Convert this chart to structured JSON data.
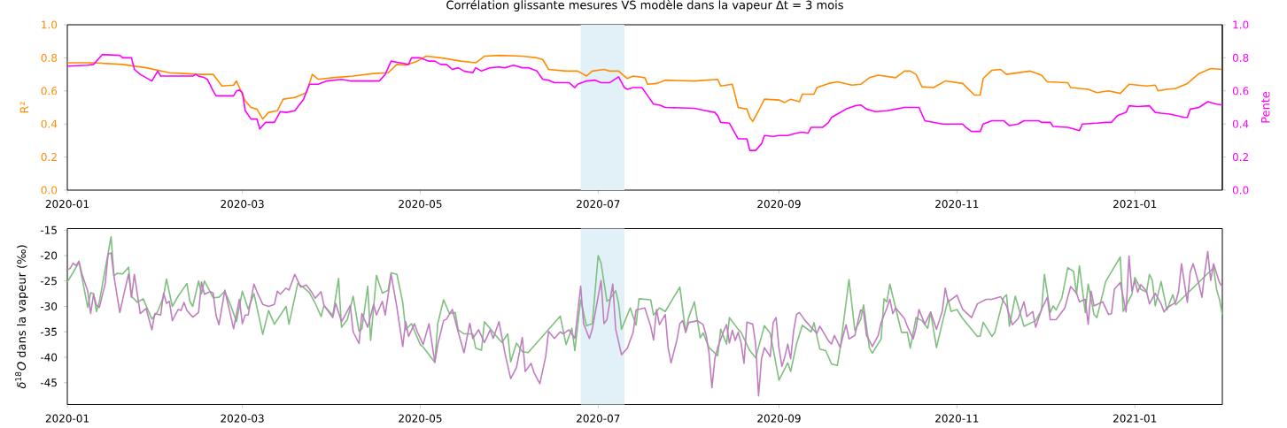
{
  "chart_data": [
    {
      "type": "line",
      "title": "Corrélation glissante mesures VS modèle dans la vapeur Δt = 3 mois",
      "ylabel": "R²",
      "y2label": "Pente",
      "xlim": [
        "2020-01-01",
        "2021-01-31"
      ],
      "xticks": [
        "2020-01",
        "2020-03",
        "2020-05",
        "2020-07",
        "2020-09",
        "2020-11",
        "2021-01"
      ],
      "ylim": [
        0,
        1
      ],
      "yticks": [
        {
          "value": 0,
          "label": "0.0"
        },
        {
          "value": 0.2,
          "label": "0.2"
        },
        {
          "value": 0.4,
          "label": "0.4"
        },
        {
          "value": 0.6,
          "label": "0.6"
        },
        {
          "value": 0.8,
          "label": "0.8"
        },
        {
          "value": 1,
          "label": "1.0"
        }
      ],
      "y2lim": [
        0,
        1
      ],
      "y2ticks": [
        {
          "value": 0,
          "label": "0.0"
        },
        {
          "value": 0.2,
          "label": "0.2"
        },
        {
          "value": 0.4,
          "label": "0.4"
        },
        {
          "value": 0.6,
          "label": "0.6"
        },
        {
          "value": 0.8,
          "label": "0.8"
        },
        {
          "value": 1,
          "label": "1.0"
        }
      ],
      "bands": [
        {
          "axis": "x",
          "from": "2020-06-25",
          "to": "2020-07-10",
          "color": "#e2f1f7"
        }
      ],
      "series": [
        {
          "color": "#ff8c00",
          "x": [
            "2020-01-01",
            "2020-01-10",
            "2020-01-20",
            "2020-01-28",
            "2020-02-05",
            "2020-02-10",
            "2020-02-15",
            "2020-02-20",
            "2020-02-23",
            "2020-02-27",
            "2020-02-28",
            "2020-03-02",
            "2020-03-04",
            "2020-03-06",
            "2020-03-08",
            "2020-03-10",
            "2020-03-13",
            "2020-03-15",
            "2020-03-19",
            "2020-03-23",
            "2020-03-25",
            "2020-03-27",
            "2020-04-01",
            "2020-04-08",
            "2020-04-15",
            "2020-04-20",
            "2020-04-23",
            "2020-04-26",
            "2020-04-30",
            "2020-05-03",
            "2020-05-08",
            "2020-05-15",
            "2020-05-20",
            "2020-05-23",
            "2020-05-28",
            "2020-06-05",
            "2020-06-10",
            "2020-06-12",
            "2020-06-14",
            "2020-06-20",
            "2020-06-24",
            "2020-06-27",
            "2020-06-29",
            "2020-07-03",
            "2020-07-05",
            "2020-07-08",
            "2020-07-11",
            "2020-07-13",
            "2020-07-17",
            "2020-07-18",
            "2020-07-21",
            "2020-07-24",
            "2020-08-03",
            "2020-08-11",
            "2020-08-12",
            "2020-08-16",
            "2020-08-18",
            "2020-08-21",
            "2020-08-22",
            "2020-08-23",
            "2020-08-25",
            "2020-08-27",
            "2020-09-01",
            "2020-09-03",
            "2020-09-05",
            "2020-09-08",
            "2020-09-09",
            "2020-09-13",
            "2020-09-14",
            "2020-09-18",
            "2020-09-21",
            "2020-09-26",
            "2020-09-29",
            "2020-10-02",
            "2020-10-05",
            "2020-10-11",
            "2020-10-14",
            "2020-10-16",
            "2020-10-18",
            "2020-10-20",
            "2020-10-24",
            "2020-10-28",
            "2020-11-03",
            "2020-11-07",
            "2020-11-09",
            "2020-11-10",
            "2020-11-13",
            "2020-11-16",
            "2020-11-18",
            "2020-11-26",
            "2020-11-30",
            "2020-12-02",
            "2020-12-09",
            "2020-12-10",
            "2020-12-16",
            "2020-12-19",
            "2020-12-23",
            "2020-12-27",
            "2020-12-30",
            "2021-01-05",
            "2021-01-08",
            "2021-01-09",
            "2021-01-12",
            "2021-01-15",
            "2021-01-19",
            "2021-01-23",
            "2021-01-27",
            "2021-01-31"
          ],
          "values": [
            0.77,
            0.77,
            0.76,
            0.74,
            0.71,
            0.705,
            0.7,
            0.7,
            0.63,
            0.635,
            0.66,
            0.54,
            0.5,
            0.49,
            0.43,
            0.47,
            0.48,
            0.55,
            0.56,
            0.59,
            0.7,
            0.67,
            0.68,
            0.69,
            0.705,
            0.71,
            0.76,
            0.755,
            0.78,
            0.81,
            0.8,
            0.78,
            0.77,
            0.81,
            0.815,
            0.81,
            0.8,
            0.79,
            0.73,
            0.72,
            0.72,
            0.69,
            0.72,
            0.73,
            0.72,
            0.72,
            0.675,
            0.69,
            0.68,
            0.64,
            0.645,
            0.665,
            0.66,
            0.67,
            0.63,
            0.64,
            0.5,
            0.49,
            0.44,
            0.415,
            0.48,
            0.55,
            0.545,
            0.53,
            0.55,
            0.535,
            0.58,
            0.58,
            0.62,
            0.645,
            0.655,
            0.635,
            0.64,
            0.68,
            0.695,
            0.68,
            0.72,
            0.72,
            0.7,
            0.625,
            0.62,
            0.66,
            0.645,
            0.575,
            0.575,
            0.675,
            0.725,
            0.73,
            0.7,
            0.72,
            0.695,
            0.655,
            0.65,
            0.62,
            0.61,
            0.59,
            0.6,
            0.585,
            0.64,
            0.63,
            0.635,
            0.6,
            0.61,
            0.615,
            0.645,
            0.705,
            0.735,
            0.73
          ]
        },
        {
          "color": "#ff00ff",
          "axis": "y2",
          "x": [
            "2020-01-01",
            "2020-01-08",
            "2020-01-10",
            "2020-01-11",
            "2020-01-13",
            "2020-01-19",
            "2020-01-20",
            "2020-01-23",
            "2020-01-24",
            "2020-01-26",
            "2020-01-28",
            "2020-01-30",
            "2020-02-01",
            "2020-02-02",
            "2020-02-13",
            "2020-02-14",
            "2020-02-15",
            "2020-02-17",
            "2020-02-18",
            "2020-02-20",
            "2020-02-21",
            "2020-02-27",
            "2020-02-28",
            "2020-02-29",
            "2020-03-01",
            "2020-03-02",
            "2020-03-04",
            "2020-03-06",
            "2020-03-07",
            "2020-03-09",
            "2020-03-12",
            "2020-03-14",
            "2020-03-16",
            "2020-03-19",
            "2020-03-22",
            "2020-03-24",
            "2020-03-27",
            "2020-03-30",
            "2020-04-04",
            "2020-04-07",
            "2020-04-13",
            "2020-04-17",
            "2020-04-19",
            "2020-04-21",
            "2020-04-24",
            "2020-04-27",
            "2020-04-28",
            "2020-05-01",
            "2020-05-04",
            "2020-05-06",
            "2020-05-08",
            "2020-05-10",
            "2020-05-12",
            "2020-05-14",
            "2020-05-16",
            "2020-05-19",
            "2020-05-20",
            "2020-05-22",
            "2020-05-25",
            "2020-05-28",
            "2020-05-30",
            "2020-06-02",
            "2020-06-05",
            "2020-06-07",
            "2020-06-10",
            "2020-06-12",
            "2020-06-14",
            "2020-06-16",
            "2020-06-21",
            "2020-06-23",
            "2020-06-24",
            "2020-06-27",
            "2020-06-30",
            "2020-07-02",
            "2020-07-05",
            "2020-07-08",
            "2020-07-10",
            "2020-07-11",
            "2020-07-13",
            "2020-07-16",
            "2020-07-18",
            "2020-07-20",
            "2020-07-22",
            "2020-07-24",
            "2020-08-03",
            "2020-08-07",
            "2020-08-10",
            "2020-08-11",
            "2020-08-12",
            "2020-08-15",
            "2020-08-18",
            "2020-08-21",
            "2020-08-22",
            "2020-08-24",
            "2020-08-26",
            "2020-08-27",
            "2020-08-30",
            "2020-09-01",
            "2020-09-04",
            "2020-09-07",
            "2020-09-09",
            "2020-09-11",
            "2020-09-12",
            "2020-09-16",
            "2020-09-18",
            "2020-09-19",
            "2020-09-21",
            "2020-09-24",
            "2020-09-27",
            "2020-09-29",
            "2020-10-01",
            "2020-10-04",
            "2020-10-08",
            "2020-10-14",
            "2020-10-19",
            "2020-10-21",
            "2020-10-27",
            "2020-11-03",
            "2020-11-04",
            "2020-11-06",
            "2020-11-09",
            "2020-11-10",
            "2020-11-13",
            "2020-11-17",
            "2020-11-19",
            "2020-11-22",
            "2020-11-24",
            "2020-11-29",
            "2020-11-30",
            "2020-12-03",
            "2020-12-04",
            "2020-12-09",
            "2020-12-11",
            "2020-12-13",
            "2020-12-14",
            "2020-12-19",
            "2020-12-22",
            "2020-12-24",
            "2020-12-26",
            "2020-12-29",
            "2020-12-30",
            "2021-01-02",
            "2021-01-06",
            "2021-01-08",
            "2021-01-10",
            "2021-01-13",
            "2021-01-18",
            "2021-01-19",
            "2021-01-20",
            "2021-01-23",
            "2021-01-26",
            "2021-01-29",
            "2021-01-31"
          ],
          "values": [
            0.75,
            0.755,
            0.76,
            0.78,
            0.82,
            0.815,
            0.8,
            0.8,
            0.73,
            0.7,
            0.68,
            0.66,
            0.72,
            0.69,
            0.69,
            0.7,
            0.69,
            0.68,
            0.67,
            0.6,
            0.57,
            0.57,
            0.6,
            0.605,
            0.59,
            0.48,
            0.43,
            0.43,
            0.37,
            0.41,
            0.41,
            0.475,
            0.47,
            0.48,
            0.55,
            0.64,
            0.64,
            0.66,
            0.67,
            0.66,
            0.66,
            0.66,
            0.7,
            0.78,
            0.77,
            0.76,
            0.8,
            0.8,
            0.78,
            0.78,
            0.76,
            0.76,
            0.73,
            0.74,
            0.72,
            0.71,
            0.74,
            0.72,
            0.74,
            0.745,
            0.74,
            0.755,
            0.74,
            0.74,
            0.72,
            0.67,
            0.665,
            0.65,
            0.65,
            0.62,
            0.64,
            0.66,
            0.665,
            0.65,
            0.65,
            0.685,
            0.62,
            0.61,
            0.62,
            0.62,
            0.57,
            0.52,
            0.515,
            0.5,
            0.495,
            0.48,
            0.47,
            0.45,
            0.41,
            0.405,
            0.31,
            0.31,
            0.24,
            0.24,
            0.28,
            0.33,
            0.325,
            0.33,
            0.33,
            0.345,
            0.35,
            0.345,
            0.38,
            0.38,
            0.41,
            0.44,
            0.46,
            0.49,
            0.51,
            0.515,
            0.49,
            0.475,
            0.48,
            0.5,
            0.5,
            0.42,
            0.4,
            0.4,
            0.38,
            0.355,
            0.355,
            0.4,
            0.42,
            0.42,
            0.39,
            0.4,
            0.42,
            0.42,
            0.41,
            0.41,
            0.385,
            0.38,
            0.37,
            0.36,
            0.4,
            0.405,
            0.41,
            0.41,
            0.45,
            0.47,
            0.51,
            0.505,
            0.51,
            0.47,
            0.465,
            0.46,
            0.44,
            0.44,
            0.49,
            0.5,
            0.535,
            0.52,
            0.515
          ]
        }
      ]
    },
    {
      "type": "line",
      "ylabel": "*δ*$^{18}$*O* dans la vapeur (‰)",
      "xlim": [
        "2020-01-01",
        "2021-01-31"
      ],
      "xticks": [
        "2020-01",
        "2020-03",
        "2020-05",
        "2020-07",
        "2020-09",
        "2020-11",
        "2021-01"
      ],
      "ylim": [
        -49.3,
        -14.7
      ],
      "yticks": [
        -45,
        -40,
        -35,
        -30,
        -25,
        -20,
        -15
      ],
      "bands": [
        {
          "axis": "x",
          "from": "2020-06-25",
          "to": "2020-07-10",
          "color": "#e2f1f7"
        }
      ],
      "series": [
        {
          "color": "#7fbf7f",
          "x": [
            "2020-01-01",
            "2020-01-03",
            "2020-01-05",
            "2020-01-08",
            "2020-01-09",
            "2020-01-10",
            "2020-01-11",
            "2020-01-12",
            "2020-01-16",
            "2020-01-17",
            "2020-01-18",
            "2020-01-20",
            "2020-01-22",
            "2020-01-23",
            "2020-01-25",
            "2020-01-27",
            "2020-01-30",
            "2020-02-01",
            "2020-02-03",
            "2020-02-04",
            "2020-02-06",
            "2020-02-08",
            "2020-02-11",
            "2020-02-12",
            "2020-02-13",
            "2020-02-15",
            "2020-02-16",
            "2020-02-17",
            "2020-02-20",
            "2020-02-22",
            "2020-02-24",
            "2020-02-26",
            "2020-02-28",
            "2020-03-01",
            "2020-03-03",
            "2020-03-05",
            "2020-03-08",
            "2020-03-10",
            "2020-03-12",
            "2020-03-16",
            "2020-03-17",
            "2020-03-20",
            "2020-03-22",
            "2020-03-24",
            "2020-03-26",
            "2020-03-28",
            "2020-03-29",
            "2020-04-01",
            "2020-04-03",
            "2020-04-04",
            "2020-04-06",
            "2020-04-08",
            "2020-04-10",
            "2020-04-11",
            "2020-04-13",
            "2020-04-14",
            "2020-04-16",
            "2020-04-18",
            "2020-04-20",
            "2020-04-21",
            "2020-04-23",
            "2020-04-25",
            "2020-04-26",
            "2020-04-28",
            "2020-05-01",
            "2020-05-02",
            "2020-05-06",
            "2020-05-07",
            "2020-05-09",
            "2020-05-11",
            "2020-05-13",
            "2020-05-14",
            "2020-05-16",
            "2020-05-19",
            "2020-05-20",
            "2020-05-22",
            "2020-05-23",
            "2020-05-25",
            "2020-05-27",
            "2020-05-29",
            "2020-05-31",
            "2020-06-01",
            "2020-06-03",
            "2020-06-05",
            "2020-06-07",
            "2020-06-18",
            "2020-06-20",
            "2020-06-22",
            "2020-06-23",
            "2020-06-25",
            "2020-06-27",
            "2020-06-29",
            "2020-07-01",
            "2020-07-02",
            "2020-07-04",
            "2020-07-05",
            "2020-07-07",
            "2020-07-08",
            "2020-07-09",
            "2020-07-12",
            "2020-07-14",
            "2020-07-15",
            "2020-07-19",
            "2020-07-20",
            "2020-07-22",
            "2020-07-24",
            "2020-07-29",
            "2020-07-31",
            "2020-08-01",
            "2020-08-03",
            "2020-08-05",
            "2020-08-06",
            "2020-08-08",
            "2020-08-11",
            "2020-08-12",
            "2020-08-14",
            "2020-08-15",
            "2020-08-18",
            "2020-08-19",
            "2020-08-22",
            "2020-08-24",
            "2020-08-27",
            "2020-08-29",
            "2020-09-01",
            "2020-09-04",
            "2020-09-05",
            "2020-09-07",
            "2020-09-09",
            "2020-09-12",
            "2020-09-13",
            "2020-09-15",
            "2020-09-17",
            "2020-09-19",
            "2020-09-21",
            "2020-09-22",
            "2020-09-25",
            "2020-09-27",
            "2020-09-29",
            "2020-09-30",
            "2020-10-02",
            "2020-10-03",
            "2020-10-06",
            "2020-10-07",
            "2020-10-08",
            "2020-10-09",
            "2020-10-11",
            "2020-10-13",
            "2020-10-15",
            "2020-10-16",
            "2020-10-18",
            "2020-10-20",
            "2020-10-22",
            "2020-10-23",
            "2020-10-25",
            "2020-10-27",
            "2020-10-29",
            "2020-10-30",
            "2020-11-01",
            "2020-11-03",
            "2020-11-08",
            "2020-11-09",
            "2020-11-10",
            "2020-11-13",
            "2020-11-14",
            "2020-11-17",
            "2020-11-18",
            "2020-11-19",
            "2020-11-21",
            "2020-11-24",
            "2020-11-28",
            "2020-11-30",
            "2020-12-01",
            "2020-12-03",
            "2020-12-04",
            "2020-12-05",
            "2020-12-07",
            "2020-12-09",
            "2020-12-11",
            "2020-12-12",
            "2020-12-13",
            "2020-12-15",
            "2020-12-16",
            "2020-12-18",
            "2020-12-19",
            "2020-12-22",
            "2020-12-27",
            "2020-12-28",
            "2020-12-31",
            "2021-01-01",
            "2021-01-03",
            "2021-01-05",
            "2021-01-06",
            "2021-01-07",
            "2021-01-08",
            "2021-01-10",
            "2021-01-12",
            "2021-01-14",
            "2021-01-15",
            "2021-01-28",
            "2021-01-29",
            "2021-01-30",
            "2021-01-31"
          ],
          "values": [
            -25.2,
            -23.3,
            -21.3,
            -30.2,
            -27.3,
            -27.5,
            -31,
            -29,
            -16.3,
            -24,
            -23.5,
            -23.6,
            -22.3,
            -28,
            -29.2,
            -28.5,
            -32.5,
            -31,
            -28,
            -24.6,
            -30,
            -28,
            -25.5,
            -29,
            -30,
            -25,
            -27.5,
            -25,
            -28.3,
            -28.2,
            -27,
            -29.8,
            -33,
            -27,
            -30.5,
            -27.5,
            -35.5,
            -30.8,
            -33.5,
            -30,
            -33.5,
            -25.5,
            -26.3,
            -27.3,
            -29.4,
            -32,
            -29.8,
            -31.8,
            -24.5,
            -34.1,
            -32.6,
            -28,
            -34.9,
            -34.4,
            -26,
            -36.7,
            -23.9,
            -27.4,
            -26.8,
            -23.4,
            -23.7,
            -29.2,
            -34.6,
            -33.4,
            -37.5,
            -38,
            -41,
            -33.4,
            -28.7,
            -31.4,
            -31.2,
            -34.6,
            -35.4,
            -35.4,
            -38.2,
            -38.6,
            -33,
            -34.4,
            -35.8,
            -37.1,
            -35.4,
            -40.9,
            -37.2,
            -38.9,
            -39.1,
            -31.9,
            -37.5,
            -34.3,
            -38.7,
            -28.7,
            -33.8,
            -33.4,
            -20,
            -21.5,
            -29,
            -28.6,
            -26.9,
            -29.4,
            -34.5,
            -30.3,
            -33.7,
            -28.5,
            -28.7,
            -31.7,
            -30.3,
            -31,
            -26.2,
            -35.1,
            -32.2,
            -29.1,
            -36.2,
            -35.2,
            -38.1,
            -39.7,
            -34.5,
            -37.4,
            -32.2,
            -34.5,
            -35.1,
            -38.7,
            -40.1,
            -33.8,
            -35.3,
            -44.5,
            -41.1,
            -42.8,
            -37.4,
            -33.7,
            -35,
            -33.2,
            -38.4,
            -38.7,
            -41.3,
            -41.6,
            -38.2,
            -24.7,
            -34.7,
            -32.6,
            -29.7,
            -38.2,
            -39.2,
            -36.4,
            -28.5,
            -29.1,
            -25.6,
            -30.3,
            -35.1,
            -35.1,
            -38.2,
            -32.2,
            -32.8,
            -34.3,
            -31.2,
            -38.1,
            -33.2,
            -28.6,
            -31,
            -30.6,
            -32.4,
            -35.9,
            -35.8,
            -33.1,
            -35.9,
            -35.1,
            -28.3,
            -27.7,
            -33.9,
            -28,
            -33.9,
            -32.8,
            -30.7,
            -23.7,
            -31.2,
            -29.9,
            -30.7,
            -28.3,
            -22.4,
            -23.1,
            -27.6,
            -22,
            -31.2,
            -25.6,
            -31.6,
            -32.2,
            -25.1,
            -20.3,
            -31,
            -27.6,
            -24.3,
            -26.6,
            -27.2,
            -23.7,
            -24.9,
            -29.9,
            -25.1,
            -30.7,
            -27.7,
            -29.7,
            -22.4,
            -26.6,
            -28.6,
            -31.6
          ]
        },
        {
          "color": "#bf7fbf",
          "x": [
            "2020-01-01",
            "2020-01-02",
            "2020-01-03",
            "2020-01-04",
            "2020-01-05",
            "2020-01-06",
            "2020-01-08",
            "2020-01-09",
            "2020-01-10",
            "2020-01-11",
            "2020-01-12",
            "2020-01-13",
            "2020-01-14",
            "2020-01-15",
            "2020-01-16",
            "2020-01-17",
            "2020-01-19",
            "2020-01-20",
            "2020-01-22",
            "2020-01-23",
            "2020-01-24",
            "2020-01-26",
            "2020-01-28",
            "2020-01-30",
            "2020-01-31",
            "2020-02-02",
            "2020-02-03",
            "2020-02-04",
            "2020-02-05",
            "2020-02-06",
            "2020-02-08",
            "2020-02-09",
            "2020-02-10",
            "2020-02-11",
            "2020-02-13",
            "2020-02-15",
            "2020-02-16",
            "2020-02-17",
            "2020-02-19",
            "2020-02-20",
            "2020-02-21",
            "2020-02-22",
            "2020-02-24",
            "2020-02-26",
            "2020-02-27",
            "2020-02-29",
            "2020-03-01",
            "2020-03-02",
            "2020-03-03",
            "2020-03-05",
            "2020-03-06",
            "2020-03-08",
            "2020-03-10",
            "2020-03-12",
            "2020-03-13",
            "2020-03-14",
            "2020-03-16",
            "2020-03-17",
            "2020-03-19",
            "2020-03-21",
            "2020-03-23",
            "2020-03-25",
            "2020-03-26",
            "2020-03-28",
            "2020-03-29",
            "2020-04-01",
            "2020-04-02",
            "2020-04-04",
            "2020-04-05",
            "2020-04-07",
            "2020-04-08",
            "2020-04-10",
            "2020-04-11",
            "2020-04-13",
            "2020-04-15",
            "2020-04-16",
            "2020-04-18",
            "2020-04-19",
            "2020-04-21",
            "2020-04-23",
            "2020-04-25",
            "2020-04-26",
            "2020-04-27",
            "2020-04-29",
            "2020-04-30",
            "2020-05-02",
            "2020-05-04",
            "2020-05-06",
            "2020-05-07",
            "2020-05-09",
            "2020-05-10",
            "2020-05-12",
            "2020-05-14",
            "2020-05-16",
            "2020-05-18",
            "2020-05-19",
            "2020-05-21",
            "2020-05-23",
            "2020-05-25",
            "2020-05-26",
            "2020-05-28",
            "2020-05-30",
            "2020-06-01",
            "2020-06-03",
            "2020-06-05",
            "2020-06-06",
            "2020-06-08",
            "2020-06-09",
            "2020-06-11",
            "2020-06-13",
            "2020-06-14",
            "2020-06-16",
            "2020-06-18",
            "2020-06-19",
            "2020-06-21",
            "2020-06-23",
            "2020-06-25",
            "2020-06-26",
            "2020-06-28",
            "2020-06-29",
            "2020-07-02",
            "2020-07-03",
            "2020-07-04",
            "2020-07-06",
            "2020-07-07",
            "2020-07-09",
            "2020-07-11",
            "2020-07-13",
            "2020-07-14",
            "2020-07-17",
            "2020-07-19",
            "2020-07-20",
            "2020-07-21",
            "2020-07-22",
            "2020-07-24",
            "2020-07-25",
            "2020-07-26",
            "2020-07-28",
            "2020-07-29",
            "2020-07-30",
            "2020-07-31",
            "2020-08-01",
            "2020-08-04",
            "2020-08-06",
            "2020-08-07",
            "2020-08-08",
            "2020-08-09",
            "2020-08-10",
            "2020-08-11",
            "2020-08-13",
            "2020-08-14",
            "2020-08-15",
            "2020-08-16",
            "2020-08-17",
            "2020-08-18",
            "2020-08-19",
            "2020-08-20",
            "2020-08-21",
            "2020-08-23",
            "2020-08-24",
            "2020-08-25",
            "2020-08-26",
            "2020-08-27",
            "2020-08-29",
            "2020-08-30",
            "2020-08-31",
            "2020-09-01",
            "2020-09-02",
            "2020-09-03",
            "2020-09-04",
            "2020-09-05",
            "2020-09-06",
            "2020-09-07",
            "2020-09-08",
            "2020-09-10",
            "2020-09-12",
            "2020-09-14",
            "2020-09-15",
            "2020-09-18",
            "2020-09-19",
            "2020-09-20",
            "2020-09-22",
            "2020-09-23",
            "2020-09-24",
            "2020-09-25",
            "2020-09-27",
            "2020-09-28",
            "2020-09-29",
            "2020-09-30",
            "2020-10-01",
            "2020-10-02",
            "2020-10-03",
            "2020-10-05",
            "2020-10-06",
            "2020-10-08",
            "2020-10-09",
            "2020-10-10",
            "2020-10-11",
            "2020-10-14",
            "2020-10-15",
            "2020-10-17",
            "2020-10-18",
            "2020-10-19",
            "2020-10-21",
            "2020-10-23",
            "2020-10-25",
            "2020-10-27",
            "2020-10-28",
            "2020-10-29",
            "2020-11-01",
            "2020-11-03",
            "2020-11-06",
            "2020-11-08",
            "2020-11-11",
            "2020-11-13",
            "2020-11-16",
            "2020-11-18",
            "2020-11-20",
            "2020-11-22",
            "2020-11-24",
            "2020-11-25",
            "2020-11-27",
            "2020-11-28",
            "2020-11-30",
            "2020-12-02",
            "2020-12-03",
            "2020-12-05",
            "2020-12-08",
            "2020-12-10",
            "2020-12-12",
            "2020-12-13",
            "2020-12-15",
            "2020-12-16",
            "2020-12-17",
            "2020-12-18",
            "2020-12-21",
            "2020-12-23",
            "2020-12-24",
            "2020-12-25",
            "2020-12-27",
            "2020-12-29",
            "2020-12-30",
            "2020-12-31",
            "2021-01-01",
            "2021-01-02",
            "2021-01-03",
            "2021-01-05",
            "2021-01-06",
            "2021-01-08",
            "2021-01-10",
            "2021-01-11",
            "2021-01-12",
            "2021-01-15",
            "2021-01-16",
            "2021-01-17",
            "2021-01-19",
            "2021-01-20",
            "2021-01-21",
            "2021-01-23",
            "2021-01-24",
            "2021-01-25",
            "2021-01-26",
            "2021-01-27",
            "2021-01-28",
            "2021-01-30",
            "2021-01-31"
          ],
          "values": [
            -22.8,
            -22.5,
            -21.5,
            -22,
            -21.1,
            -23.6,
            -27,
            -31.4,
            -27.6,
            -29.8,
            -30.2,
            -27.8,
            -25.5,
            -19.7,
            -19.5,
            -24.1,
            -31.2,
            -28.6,
            -23.6,
            -28.2,
            -23.7,
            -31.4,
            -30.4,
            -34.6,
            -31.4,
            -31.7,
            -27.4,
            -29.4,
            -29,
            -32.8,
            -30.6,
            -30.8,
            -29.2,
            -30.8,
            -32.1,
            -31.2,
            -25.2,
            -27.6,
            -27.1,
            -27.4,
            -31.8,
            -33.6,
            -26.8,
            -31.8,
            -34.4,
            -28.6,
            -33.4,
            -31.7,
            -31.7,
            -25.6,
            -27.1,
            -29.6,
            -30,
            -29.6,
            -27,
            -27.6,
            -26.4,
            -26.8,
            -23.7,
            -26.2,
            -25.8,
            -27.4,
            -28.4,
            -27.1,
            -29.8,
            -32.2,
            -29.4,
            -33,
            -32,
            -29.8,
            -35,
            -37.3,
            -31.4,
            -34.1,
            -29.6,
            -31.7,
            -29,
            -31.7,
            -23.7,
            -30.2,
            -37.9,
            -33,
            -35.9,
            -33.4,
            -35,
            -37.5,
            -33.4,
            -41,
            -37.5,
            -32.8,
            -32.5,
            -30.6,
            -35,
            -39.1,
            -33.3,
            -36.3,
            -34.6,
            -37.1,
            -34.6,
            -36.3,
            -33,
            -39.1,
            -44.2,
            -42,
            -36.1,
            -42.8,
            -41.2,
            -43,
            -45.2,
            -39.9,
            -34.9,
            -36.3,
            -35,
            -35.4,
            -34.6,
            -36.3,
            -26,
            -33.4,
            -36.3,
            -34.4,
            -24.9,
            -33.4,
            -32.6,
            -25.6,
            -34.4,
            -39.5,
            -38.2,
            -35.1,
            -30.7,
            -30.3,
            -33.9,
            -36.6,
            -30.6,
            -33.6,
            -31.6,
            -38.2,
            -41.1,
            -36.6,
            -33.4,
            -32.8,
            -35.1,
            -33.2,
            -32.8,
            -33.6,
            -35.6,
            -39.1,
            -46,
            -40.3,
            -38.1,
            -34.9,
            -33.6,
            -37.2,
            -34.7,
            -36.7,
            -35.1,
            -37.2,
            -41.2,
            -33.1,
            -33.5,
            -37.4,
            -47.6,
            -40.3,
            -38.1,
            -39.9,
            -33.2,
            -32.2,
            -38.2,
            -41.8,
            -39.9,
            -37.4,
            -40.3,
            -34.9,
            -31.6,
            -31.2,
            -32.8,
            -34.1,
            -35.3,
            -33.9,
            -36.8,
            -37.4,
            -35.7,
            -38.1,
            -35.7,
            -33.6,
            -36.4,
            -35.7,
            -33.1,
            -30.7,
            -31.1,
            -35.7,
            -36.7,
            -37.9,
            -35.7,
            -33.2,
            -30.3,
            -28.6,
            -31.4,
            -30.3,
            -32.4,
            -33.9,
            -36.4,
            -34.2,
            -30.6,
            -33.5,
            -31.1,
            -34.5,
            -30.9,
            -26.4,
            -29.1,
            -27.8,
            -30.6,
            -32.2,
            -29.5,
            -28.6,
            -28.6,
            -28.1,
            -29.9,
            -33.6,
            -32.4,
            -29.1,
            -32,
            -31,
            -34.1,
            -30.6,
            -28.2,
            -32.6,
            -32.6,
            -30.3,
            -26.1,
            -27.4,
            -29.1,
            -28.6,
            -33.5,
            -27,
            -29.9,
            -29.1,
            -31.6,
            -31.4,
            -26.6,
            -25.3,
            -31.1,
            -20.1,
            -27,
            -24.9,
            -27.2,
            -25.7,
            -27,
            -29.5,
            -27.4,
            -29.5,
            -31.1,
            -30.3,
            -29.2,
            -27,
            -21.6,
            -29.2,
            -23.2,
            -21.6,
            -25.7,
            -28.2,
            -23.2,
            -19.2,
            -24.9,
            -21.6,
            -25.3,
            -26.1
          ]
        }
      ]
    }
  ]
}
